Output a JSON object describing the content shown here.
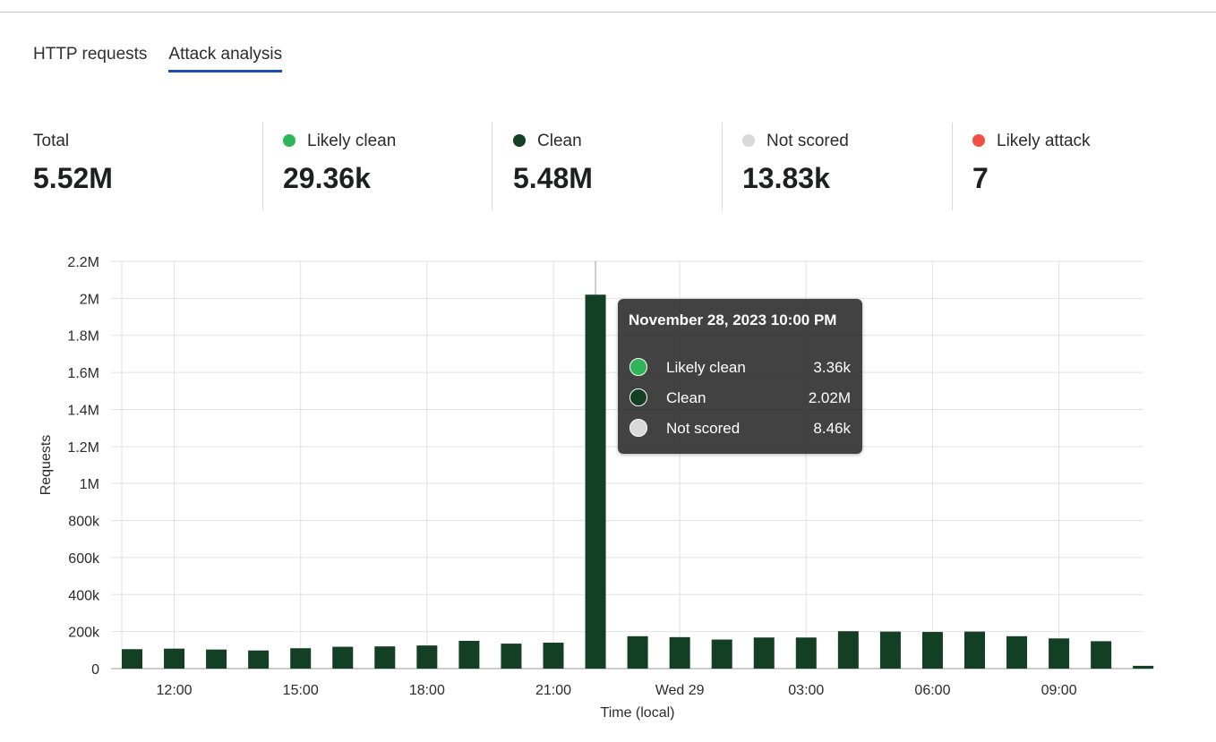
{
  "tabs": [
    {
      "label": "HTTP requests",
      "active": false
    },
    {
      "label": "Attack analysis",
      "active": true
    }
  ],
  "summary": [
    {
      "label": "Total",
      "value": "5.52M",
      "color": null
    },
    {
      "label": "Likely clean",
      "value": "29.36k",
      "color": "#2fb45a"
    },
    {
      "label": "Clean",
      "value": "5.48M",
      "color": "#133f24"
    },
    {
      "label": "Not scored",
      "value": "13.83k",
      "color": "#d9d9d9"
    },
    {
      "label": "Likely attack",
      "value": "7",
      "color": "#f0503f"
    }
  ],
  "tooltip": {
    "title": "November 28, 2023 10:00 PM",
    "rows": [
      {
        "name": "Likely clean",
        "value": "3.36k",
        "color": "#2fb45a"
      },
      {
        "name": "Clean",
        "value": "2.02M",
        "color": "#133f24"
      },
      {
        "name": "Not scored",
        "value": "8.46k",
        "color": "#d9d9d9"
      }
    ]
  },
  "chart_data": {
    "type": "bar",
    "xlabel": "Time (local)",
    "ylabel": "Requests",
    "ylim": [
      0,
      2200000
    ],
    "y_ticks": [
      0,
      200000,
      400000,
      600000,
      800000,
      1000000,
      1200000,
      1400000,
      1600000,
      1800000,
      2000000,
      2200000
    ],
    "y_tick_labels": [
      "0",
      "200k",
      "400k",
      "600k",
      "800k",
      "1M",
      "1.2M",
      "1.4M",
      "1.6M",
      "1.8M",
      "2M",
      "2.2M"
    ],
    "x_tick_labels": [
      "12:00",
      "15:00",
      "18:00",
      "21:00",
      "Wed 29",
      "03:00",
      "06:00",
      "09:00"
    ],
    "x_tick_index": [
      1,
      4,
      7,
      10,
      13,
      16,
      19,
      22
    ],
    "grid": true,
    "bar_color": "#133f24",
    "series": [
      {
        "name": "Clean",
        "values": [
          105000,
          108000,
          103000,
          98000,
          110000,
          118000,
          120000,
          125000,
          150000,
          135000,
          140000,
          2020000,
          175000,
          170000,
          157000,
          168000,
          168000,
          202000,
          200000,
          198000,
          200000,
          175000,
          163000,
          148000,
          15000
        ]
      }
    ],
    "highlight_index": 11
  }
}
